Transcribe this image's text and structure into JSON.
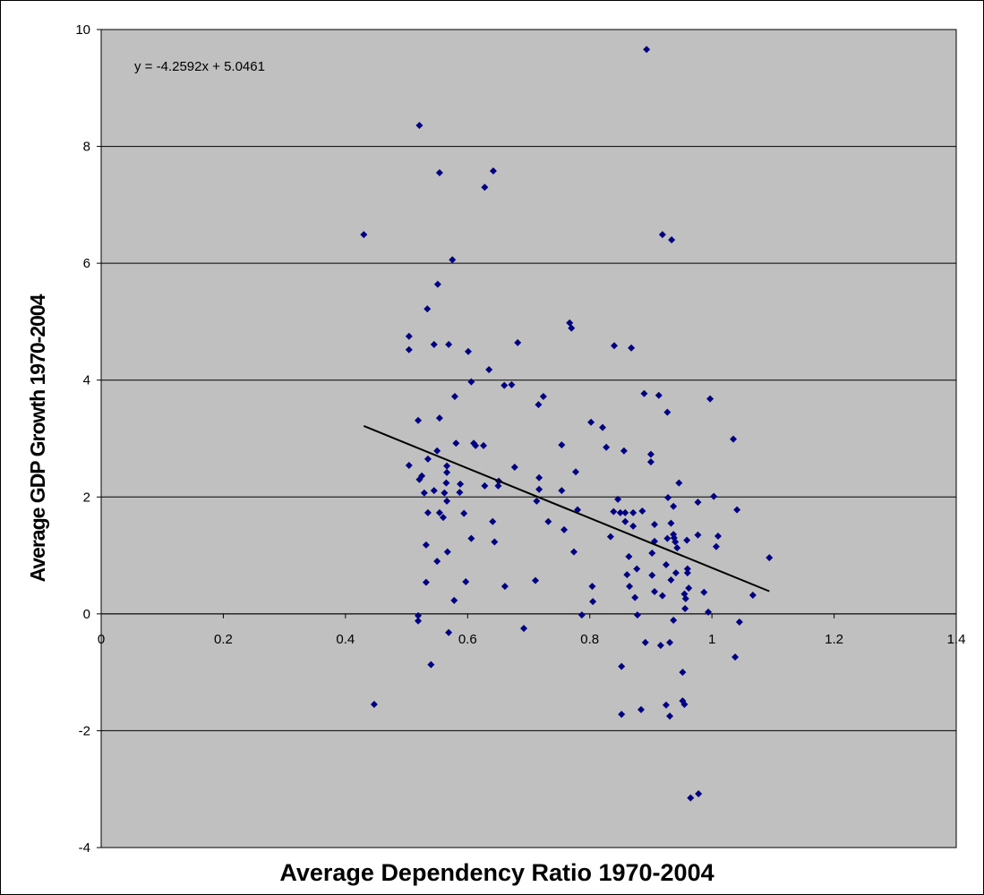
{
  "chart_data": {
    "type": "scatter",
    "x_label": "Average Dependency Ratio 1970-2004",
    "y_label": "Average GDP Growth 1970-2004",
    "annotation": "y = -4.2592x + 5.0461",
    "trendline": {
      "slope": -4.2592,
      "intercept": 5.0461,
      "x": [
        0.43,
        1.094
      ]
    },
    "color": "#000080",
    "trendline_color": "#000000",
    "plot_background": "#c0c0c0",
    "grid": true,
    "xlim": [
      0,
      1.4
    ],
    "xticks": [
      0,
      0.2,
      0.4,
      0.6,
      0.8,
      1,
      1.2,
      1.4
    ],
    "ylim": [
      -4,
      10
    ],
    "yticks": [
      -4,
      -2,
      0,
      2,
      4,
      6,
      8,
      10
    ],
    "x": [
      0.43,
      0.447,
      0.504,
      0.504,
      0.504,
      0.521,
      0.519,
      0.521,
      0.519,
      0.519,
      0.525,
      0.529,
      0.532,
      0.532,
      0.534,
      0.535,
      0.535,
      0.54,
      0.545,
      0.545,
      0.55,
      0.551,
      0.55,
      0.554,
      0.554,
      0.554,
      0.56,
      0.562,
      0.565,
      0.566,
      0.566,
      0.566,
      0.569,
      0.567,
      0.569,
      0.575,
      0.578,
      0.579,
      0.581,
      0.587,
      0.588,
      0.594,
      0.597,
      0.601,
      0.606,
      0.606,
      0.61,
      0.613,
      0.626,
      0.628,
      0.628,
      0.635,
      0.642,
      0.641,
      0.644,
      0.65,
      0.651,
      0.66,
      0.661,
      0.672,
      0.677,
      0.682,
      0.692,
      0.711,
      0.713,
      0.716,
      0.717,
      0.717,
      0.724,
      0.732,
      0.754,
      0.754,
      0.758,
      0.767,
      0.77,
      0.774,
      0.777,
      0.78,
      0.787,
      0.802,
      0.804,
      0.805,
      0.821,
      0.827,
      0.834,
      0.839,
      0.84,
      0.846,
      0.85,
      0.852,
      0.852,
      0.856,
      0.858,
      0.858,
      0.861,
      0.864,
      0.865,
      0.868,
      0.871,
      0.871,
      0.874,
      0.877,
      0.878,
      0.884,
      0.886,
      0.889,
      0.891,
      0.893,
      0.9,
      0.9,
      0.902,
      0.902,
      0.906,
      0.906,
      0.906,
      0.913,
      0.916,
      0.919,
      0.925,
      0.927,
      0.928,
      0.937,
      0.94,
      0.943,
      0.952,
      0.955,
      0.957,
      0.919,
      0.934,
      0.927,
      0.933,
      0.933,
      0.937,
      0.938,
      0.931,
      0.925,
      0.931,
      0.937,
      0.946,
      0.941,
      0.952,
      0.955,
      0.956,
      0.959,
      0.96,
      0.96,
      0.962,
      0.965,
      0.978,
      0.977,
      0.977,
      0.987,
      0.994,
      0.997,
      1.003,
      1.007,
      1.01,
      1.035,
      1.038,
      1.041,
      1.045,
      1.067,
      1.094
    ],
    "values": [
      6.49,
      -1.55,
      4.75,
      4.52,
      2.54,
      8.36,
      3.31,
      2.3,
      -0.03,
      -0.12,
      2.36,
      2.07,
      1.18,
      0.54,
      5.22,
      2.65,
      1.73,
      -0.87,
      4.61,
      2.11,
      0.9,
      5.64,
      2.79,
      7.55,
      3.35,
      1.73,
      1.65,
      2.07,
      2.24,
      2.53,
      2.42,
      1.93,
      4.61,
      1.06,
      -0.32,
      6.06,
      0.23,
      3.72,
      2.92,
      2.08,
      2.22,
      1.72,
      0.55,
      4.49,
      3.97,
      1.29,
      2.92,
      2.88,
      2.88,
      7.3,
      2.19,
      4.18,
      7.58,
      1.58,
      1.23,
      2.19,
      2.27,
      3.91,
      0.47,
      3.92,
      2.51,
      4.64,
      -0.25,
      0.57,
      1.93,
      3.58,
      2.13,
      2.33,
      3.72,
      1.58,
      2.89,
      2.11,
      1.44,
      4.98,
      4.89,
      1.06,
      2.43,
      1.78,
      -0.02,
      3.28,
      0.47,
      0.21,
      3.19,
      2.85,
      1.32,
      1.75,
      4.59,
      1.96,
      1.73,
      -0.9,
      -1.72,
      2.79,
      1.73,
      1.58,
      0.67,
      0.98,
      0.47,
      4.55,
      1.73,
      1.5,
      0.28,
      0.77,
      -0.02,
      -1.64,
      1.76,
      3.77,
      -0.49,
      9.66,
      2.73,
      2.6,
      1.04,
      0.66,
      1.53,
      1.24,
      0.38,
      3.74,
      -0.54,
      0.31,
      0.84,
      1.29,
      1.99,
      1.84,
      1.23,
      1.13,
      -1.0,
      0.34,
      0.26,
      6.49,
      6.4,
      3.45,
      1.55,
      0.58,
      1.36,
      1.3,
      -0.49,
      -1.56,
      -1.75,
      -0.11,
      2.24,
      0.7,
      -1.49,
      -1.55,
      0.09,
      1.26,
      0.77,
      0.7,
      0.44,
      -3.15,
      -3.08,
      1.91,
      1.35,
      0.37,
      0.03,
      3.68,
      2.01,
      1.15,
      1.33,
      2.99,
      -0.74,
      1.78,
      -0.14,
      0.32,
      0.96
    ]
  }
}
